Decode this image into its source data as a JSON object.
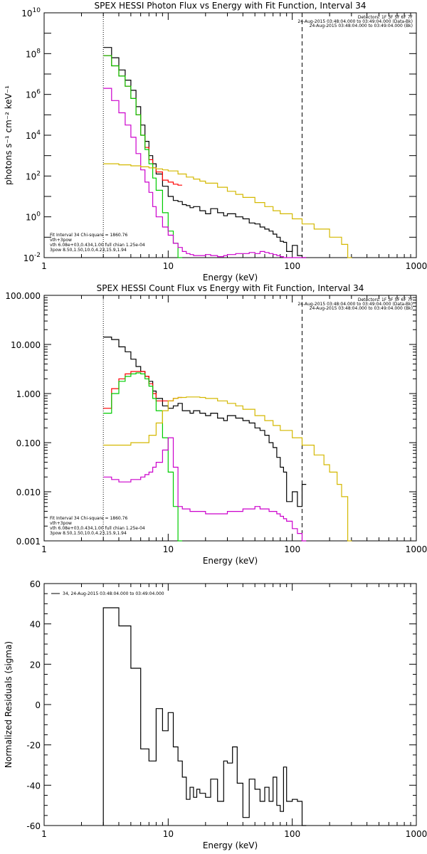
{
  "chart_data": [
    {
      "type": "line",
      "title": "SPEX HESSI Photon Flux vs Energy with Fit Function, Interval 34",
      "xlabel": "Energy (keV)",
      "ylabel": "photons s⁻¹ cm⁻² keV⁻¹",
      "xlim": [
        1,
        1000
      ],
      "ylim_log10": [
        -2,
        10
      ],
      "xscale": "log",
      "yscale": "log",
      "x_tick_labels": [
        "1",
        "10",
        "100",
        "1000"
      ],
      "y_tick_labels": [
        "10-2",
        "100",
        "102",
        "104",
        "106",
        "108",
        "1010"
      ],
      "vlines": [
        {
          "x": 3,
          "style": "dotted"
        },
        {
          "x": 120,
          "style": "dashed"
        }
      ],
      "legend_topright": [
        "Detectors: 1F 3F 5F 6F 7F",
        "24-Aug-2015 03:48:04.000 to 03:49:04.000 (Data-Bk)",
        "24-Aug-2015 03:48:04.000 to 03:49:04.000 (Bk)"
      ],
      "legend_bottomleft": [
        "Fit Interval 34   Chi-square = 1860.76",
        "vth+3pow",
        "vth 6.08e+03,0.434,1.00  full chian 1.25e-04",
        "3pow 8.50,1.50,10.0,4.23,15.9,1.94"
      ],
      "series": [
        {
          "color": "#000000",
          "x": [
            3,
            3.5,
            4,
            4.5,
            5,
            5.5,
            6,
            6.5,
            7,
            7.5,
            8,
            9,
            10,
            11,
            12,
            13,
            14,
            15,
            16,
            18,
            20,
            22,
            25,
            28,
            30,
            35,
            40,
            45,
            50,
            55,
            60,
            65,
            70,
            75,
            80,
            85,
            90,
            100,
            110,
            120
          ],
          "log10y": [
            8.3,
            7.8,
            7.2,
            6.7,
            6.2,
            5.4,
            4.5,
            3.7,
            3.0,
            2.6,
            2.1,
            1.5,
            1.0,
            0.8,
            0.75,
            0.6,
            0.55,
            0.45,
            0.5,
            0.3,
            0.15,
            0.4,
            0.2,
            0.05,
            0.15,
            0.0,
            -0.1,
            -0.3,
            -0.35,
            -0.5,
            -0.6,
            -0.7,
            -0.85,
            -1.0,
            -1.2,
            -1.25,
            -1.7,
            -1.4,
            -1.9,
            -2.0
          ]
        },
        {
          "color": "#ff0000",
          "x": [
            3,
            3.5,
            4,
            4.5,
            5,
            5.5,
            6,
            6.5,
            7,
            7.5,
            8,
            9,
            10,
            11,
            12
          ],
          "log10y": [
            7.9,
            7.4,
            6.9,
            6.4,
            5.8,
            5.0,
            4.0,
            3.4,
            2.8,
            2.4,
            2.2,
            1.8,
            1.7,
            1.6,
            1.55
          ]
        },
        {
          "color": "#00cc00",
          "x": [
            3,
            3.5,
            4,
            4.5,
            5,
            5.5,
            6,
            6.5,
            7,
            7.5,
            8,
            9,
            10,
            11,
            12
          ],
          "log10y": [
            7.9,
            7.4,
            6.9,
            6.4,
            5.8,
            5.0,
            4.0,
            3.3,
            2.6,
            1.9,
            1.3,
            0.2,
            -0.7,
            -1.3,
            -2.0
          ]
        },
        {
          "color": "#cc00cc",
          "x": [
            3,
            3.5,
            4,
            4.5,
            5,
            5.5,
            6,
            6.5,
            7,
            7.5,
            8,
            9,
            10,
            11,
            12,
            13,
            14,
            15,
            16,
            18,
            20,
            22,
            25,
            28,
            30,
            35,
            40,
            45,
            50,
            55,
            60,
            65,
            70,
            75,
            80,
            85,
            90,
            100,
            110,
            120
          ],
          "log10y": [
            6.3,
            5.7,
            5.1,
            4.5,
            3.9,
            3.1,
            2.3,
            1.7,
            1.2,
            0.5,
            0.0,
            -0.5,
            -0.9,
            -1.3,
            -1.5,
            -1.7,
            -1.8,
            -1.85,
            -1.9,
            -1.9,
            -1.85,
            -1.9,
            -1.95,
            -1.9,
            -1.85,
            -1.8,
            -1.8,
            -1.75,
            -1.8,
            -1.7,
            -1.75,
            -1.8,
            -1.85,
            -1.9,
            -1.95,
            -2.0,
            -2.0,
            -2.0,
            -2.0,
            -2.0
          ]
        },
        {
          "color": "#d4b800",
          "x": [
            3,
            4,
            5,
            6,
            7,
            8,
            9,
            10,
            12,
            14,
            16,
            18,
            20,
            25,
            30,
            35,
            40,
            50,
            60,
            70,
            80,
            100,
            120,
            150,
            200,
            250,
            280
          ],
          "log10y": [
            2.6,
            2.55,
            2.5,
            2.45,
            2.4,
            2.35,
            2.3,
            2.25,
            2.1,
            1.95,
            1.85,
            1.75,
            1.65,
            1.45,
            1.25,
            1.1,
            0.95,
            0.7,
            0.5,
            0.3,
            0.15,
            -0.1,
            -0.35,
            -0.6,
            -1.0,
            -1.35,
            -2.0
          ]
        }
      ]
    },
    {
      "type": "line",
      "title": "SPEX HESSI Count Flux vs Energy with Fit Function, Interval 34",
      "xlabel": "Energy (keV)",
      "xlim": [
        1,
        1000
      ],
      "ylim_log10": [
        -3,
        2
      ],
      "xscale": "log",
      "yscale": "log",
      "x_tick_labels": [
        "1",
        "10",
        "100",
        "1000"
      ],
      "y_tick_labels": [
        "0.001",
        "0.010",
        "0.100",
        "1.000",
        "10.000",
        "100.000"
      ],
      "vlines": [
        {
          "x": 3,
          "style": "dotted"
        },
        {
          "x": 120,
          "style": "dashed"
        }
      ],
      "legend_topright": [
        "Detectors: 1F 3F 5F 6F 7F",
        "24-Aug-2015 03:48:04.000 to 03:49:04.000 (Data-Bk)",
        "24-Aug-2015 03:48:04.000 to 03:49:04.000 (Bk)"
      ],
      "legend_bottomleft": [
        "Fit Interval 34   Chi-square = 1860.76",
        "vth+3pow",
        "vth 6.08e+03,0.434,1.00  full chian 1.25e-04",
        "3pow 8.50,1.50,10.0,4.23,15.9,1.94"
      ],
      "series": [
        {
          "color": "#000000",
          "x": [
            3,
            3.5,
            4,
            4.5,
            5,
            5.5,
            6,
            6.5,
            7,
            7.5,
            8,
            9,
            10,
            11,
            12,
            13,
            14,
            15,
            16,
            18,
            20,
            22,
            25,
            28,
            30,
            35,
            40,
            45,
            50,
            55,
            60,
            65,
            70,
            75,
            80,
            85,
            90,
            100,
            110,
            120
          ],
          "log10y": [
            1.15,
            1.1,
            0.95,
            0.85,
            0.7,
            0.55,
            0.45,
            0.35,
            0.25,
            0.05,
            -0.1,
            -0.25,
            -0.3,
            -0.25,
            -0.2,
            -0.35,
            -0.35,
            -0.4,
            -0.35,
            -0.4,
            -0.45,
            -0.4,
            -0.5,
            -0.55,
            -0.45,
            -0.5,
            -0.55,
            -0.6,
            -0.7,
            -0.75,
            -0.85,
            -1.0,
            -1.1,
            -1.3,
            -1.5,
            -1.6,
            -2.2,
            -2.0,
            -2.3,
            -1.85
          ]
        },
        {
          "color": "#ff0000",
          "x": [
            3,
            3.5,
            4,
            4.5,
            5,
            5.5,
            6,
            6.5,
            7,
            7.5,
            8,
            9,
            10,
            11,
            12
          ],
          "log10y": [
            -0.3,
            0.1,
            0.3,
            0.4,
            0.45,
            0.45,
            0.45,
            0.35,
            0.2,
            0.0,
            -0.15,
            -0.15,
            -0.15,
            -0.1,
            -0.08
          ]
        },
        {
          "color": "#00cc00",
          "x": [
            3,
            3.5,
            4,
            4.5,
            5,
            5.5,
            6,
            6.5,
            7,
            7.5,
            8,
            9,
            10,
            11,
            12
          ],
          "log10y": [
            -0.4,
            0.0,
            0.25,
            0.35,
            0.4,
            0.42,
            0.4,
            0.3,
            0.15,
            -0.1,
            -0.35,
            -0.9,
            -1.6,
            -2.3,
            -3.0
          ]
        },
        {
          "color": "#cc00cc",
          "x": [
            3,
            3.5,
            4,
            4.5,
            5,
            5.5,
            6,
            6.5,
            7,
            7.5,
            8,
            9,
            10,
            11,
            12,
            13,
            14,
            15,
            16,
            18,
            20,
            22,
            25,
            28,
            30,
            35,
            40,
            45,
            50,
            55,
            60,
            65,
            70,
            75,
            80,
            85,
            90,
            100,
            110,
            120
          ],
          "log10y": [
            -1.7,
            -1.75,
            -1.8,
            -1.8,
            -1.75,
            -1.75,
            -1.7,
            -1.65,
            -1.6,
            -1.5,
            -1.4,
            -1.15,
            -0.9,
            -1.5,
            -2.3,
            -2.35,
            -2.35,
            -2.4,
            -2.4,
            -2.4,
            -2.45,
            -2.45,
            -2.45,
            -2.45,
            -2.4,
            -2.4,
            -2.35,
            -2.35,
            -2.3,
            -2.35,
            -2.35,
            -2.4,
            -2.4,
            -2.45,
            -2.5,
            -2.55,
            -2.6,
            -2.75,
            -2.85,
            -3.0
          ]
        },
        {
          "color": "#d4b800",
          "x": [
            3,
            4,
            5,
            6,
            7,
            8,
            9,
            10,
            11,
            12,
            14,
            16,
            18,
            20,
            25,
            30,
            35,
            40,
            50,
            60,
            70,
            80,
            100,
            120,
            150,
            180,
            200,
            230,
            250,
            280
          ],
          "log10y": [
            -1.05,
            -1.05,
            -1.0,
            -1.0,
            -0.85,
            -0.6,
            -0.35,
            -0.15,
            -0.1,
            -0.08,
            -0.07,
            -0.07,
            -0.08,
            -0.1,
            -0.15,
            -0.2,
            -0.25,
            -0.32,
            -0.45,
            -0.55,
            -0.65,
            -0.75,
            -0.9,
            -1.05,
            -1.25,
            -1.45,
            -1.6,
            -1.85,
            -2.1,
            -3.0
          ]
        }
      ]
    },
    {
      "type": "line",
      "title": "",
      "xlabel": "Energy (keV)",
      "ylabel": "Normalized Residuals (sigma)",
      "xlim": [
        1,
        1000
      ],
      "ylim": [
        -60,
        60
      ],
      "xscale": "log",
      "x_tick_labels": [
        "1",
        "10",
        "100",
        "1000"
      ],
      "y_tick_labels": [
        "-60",
        "-40",
        "-20",
        "0",
        "20",
        "40",
        "60"
      ],
      "legend": [
        "34, 24-Aug-2015 03:48:04.000 to 03:49:04.000"
      ],
      "series": [
        {
          "color": "#000000",
          "x": [
            3,
            4,
            5,
            6,
            7,
            8,
            9,
            10,
            11,
            12,
            13,
            14,
            15,
            16,
            17,
            18,
            20,
            22,
            25,
            28,
            30,
            33,
            36,
            40,
            45,
            50,
            55,
            60,
            65,
            70,
            75,
            80,
            85,
            90,
            100,
            110,
            120
          ],
          "y": [
            48,
            39,
            18,
            -22,
            -28,
            -2,
            -13,
            -4,
            -21,
            -28,
            -36,
            -47,
            -41,
            -46,
            -42,
            -44,
            -46,
            -37,
            -48,
            -28,
            -29,
            -21,
            -39,
            -56,
            -37,
            -42,
            -48,
            -41,
            -48,
            -36,
            -50,
            -53,
            -31,
            -48,
            -47,
            -48,
            -60
          ]
        }
      ]
    }
  ]
}
